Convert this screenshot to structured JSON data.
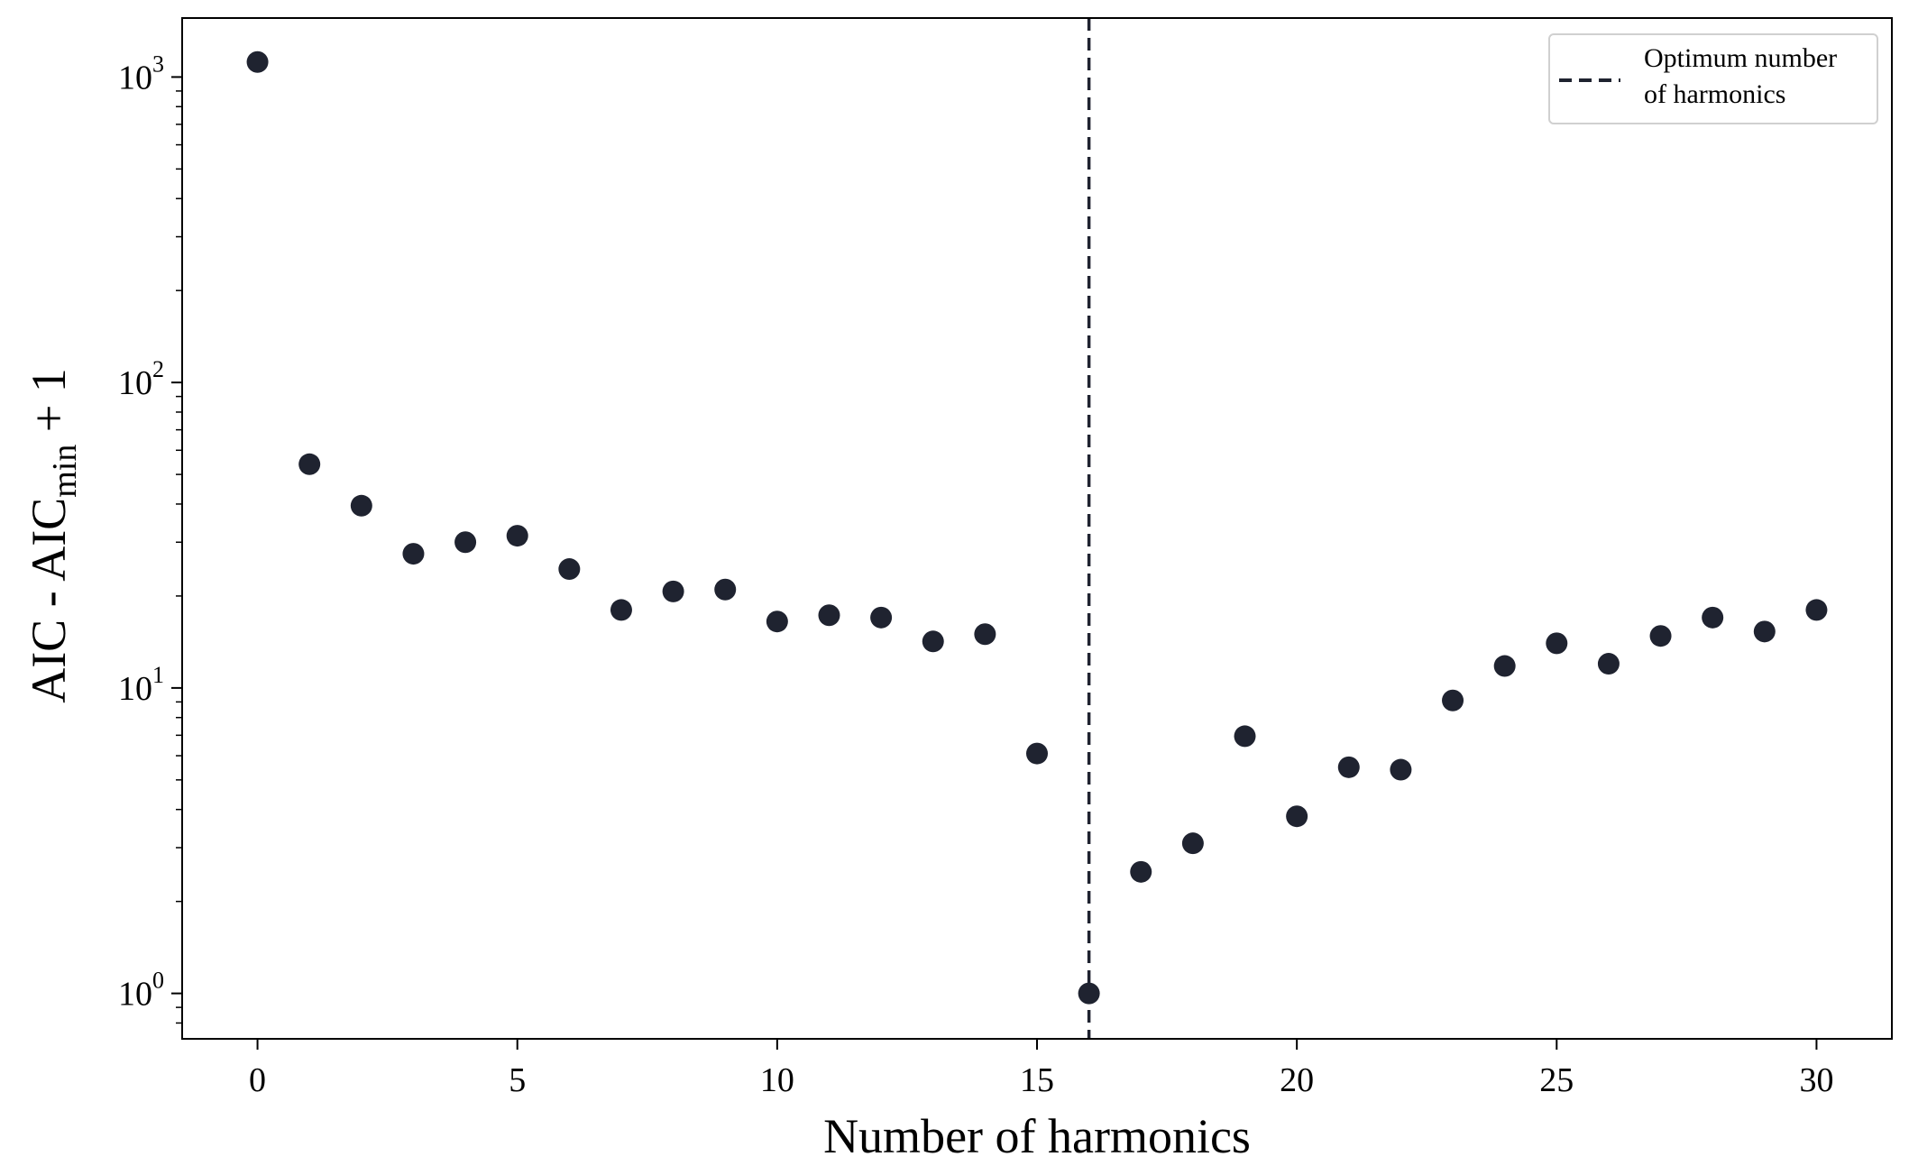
{
  "chart_data": {
    "type": "scatter",
    "xlabel": "Number of harmonics",
    "ylabel": {
      "main": "AIC - AIC",
      "sub": "min",
      "suffix": " + 1"
    },
    "yscale": "log",
    "xlim": [
      -1.45,
      31.45
    ],
    "ylim": [
      0.71,
      1560
    ],
    "x_ticks": [
      0,
      5,
      10,
      15,
      20,
      25,
      30
    ],
    "x_tick_labels": [
      "0",
      "5",
      "10",
      "15",
      "20",
      "25",
      "30"
    ],
    "y_ticks": [
      1,
      10,
      100,
      1000
    ],
    "y_tick_labels": [
      {
        "base": "10",
        "exp": "0"
      },
      {
        "base": "10",
        "exp": "1"
      },
      {
        "base": "10",
        "exp": "2"
      },
      {
        "base": "10",
        "exp": "3"
      }
    ],
    "x": [
      0,
      1,
      2,
      3,
      4,
      5,
      6,
      7,
      8,
      9,
      10,
      11,
      12,
      13,
      14,
      15,
      16,
      17,
      18,
      19,
      20,
      21,
      22,
      23,
      24,
      25,
      26,
      27,
      28,
      29,
      30
    ],
    "y": [
      1120,
      54,
      39.5,
      27.5,
      30,
      31.5,
      24.5,
      18,
      20.7,
      21,
      16.5,
      17.3,
      17,
      14.2,
      15,
      6.1,
      1,
      2.5,
      3.1,
      6.95,
      3.8,
      5.5,
      5.4,
      9.1,
      11.8,
      14,
      12,
      14.8,
      17,
      15.3,
      18
    ],
    "vline": {
      "x": 16,
      "style": "dashed"
    },
    "legend": {
      "label": "Optimum number\nof harmonics",
      "label_lines": [
        "Optimum number",
        "of harmonics"
      ],
      "placement": "top-right"
    },
    "grid": false,
    "colors": {
      "marker": "#1f2330",
      "vline": "#1f2330",
      "axes": "#000000",
      "legend_border": "#d0d0d0"
    }
  }
}
